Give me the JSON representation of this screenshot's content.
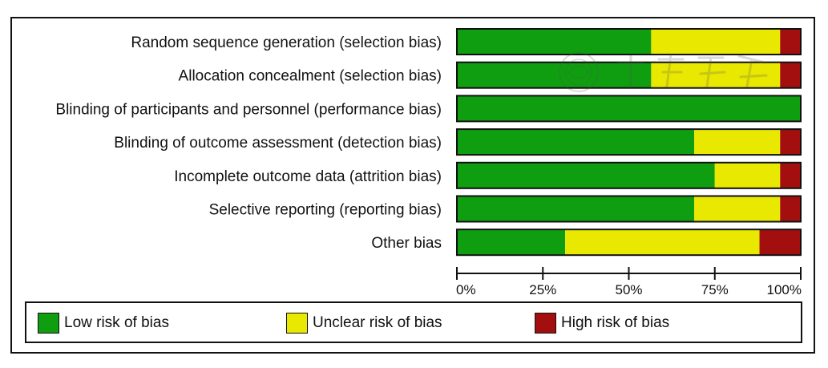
{
  "chart_data": {
    "type": "bar",
    "stacked": true,
    "orientation": "horizontal",
    "title": "",
    "xlabel": "",
    "ylabel": "",
    "xlim": [
      0,
      100
    ],
    "x_ticks": [
      "0%",
      "25%",
      "50%",
      "75%",
      "100%"
    ],
    "categories": [
      "Random sequence generation (selection bias)",
      "Allocation concealment (selection bias)",
      "Blinding of participants and personnel (performance bias)",
      "Blinding of outcome assessment (detection bias)",
      "Incomplete outcome data (attrition bias)",
      "Selective reporting (reporting bias)",
      "Other bias"
    ],
    "series": [
      {
        "name": "Low risk of bias",
        "color": "#0f9e0f",
        "values": [
          56.5,
          56.5,
          100,
          69,
          75,
          69,
          31.5
        ]
      },
      {
        "name": "Unclear risk of bias",
        "color": "#e8e800",
        "values": [
          37.5,
          37.5,
          0,
          25,
          19,
          25,
          56.5
        ]
      },
      {
        "name": "High risk of bias",
        "color": "#a30f0f",
        "values": [
          6,
          6,
          0,
          6,
          6,
          6,
          12
        ]
      }
    ],
    "grid": false,
    "legend_position": "bottom"
  },
  "colors": {
    "low": "#0f9e0f",
    "unclear": "#e8e800",
    "high": "#a30f0f",
    "border": "#111111"
  },
  "icons": {
    "watermark": "watermark-emblem-icon"
  }
}
